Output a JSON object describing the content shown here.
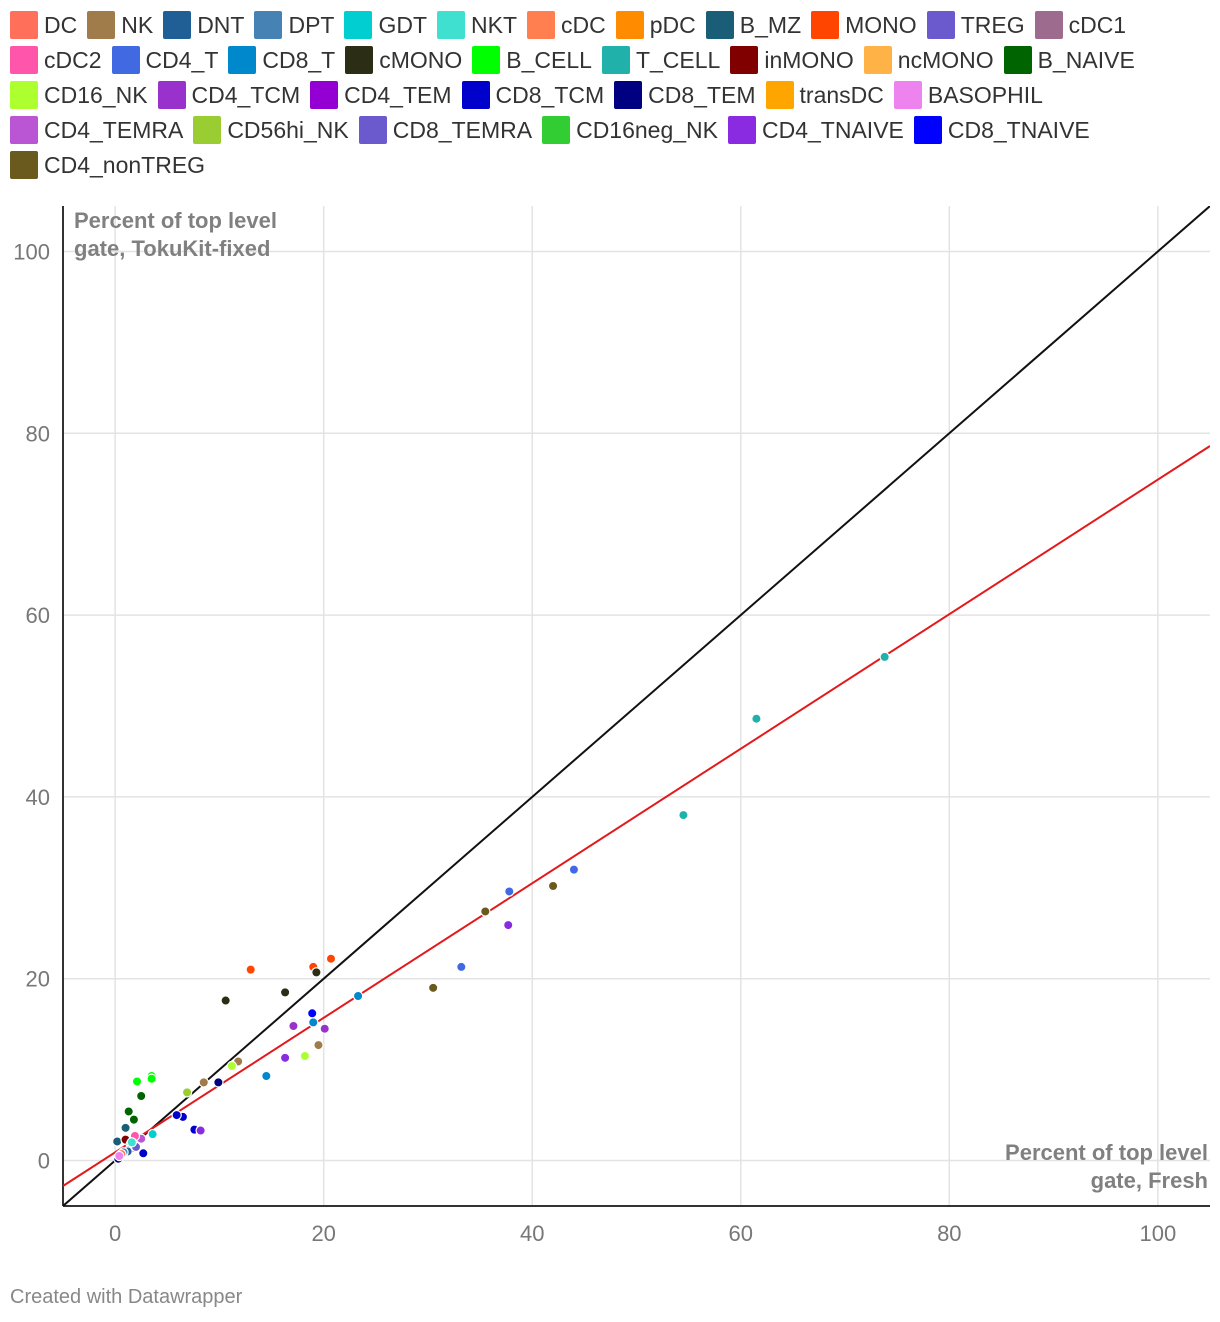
{
  "chart_data": {
    "type": "scatter",
    "legend": [
      {
        "name": "DC",
        "color": "#ff6f59"
      },
      {
        "name": "NK",
        "color": "#a07c4b"
      },
      {
        "name": "DNT",
        "color": "#1f5f96"
      },
      {
        "name": "DPT",
        "color": "#4682b4"
      },
      {
        "name": "GDT",
        "color": "#00ced1"
      },
      {
        "name": "NKT",
        "color": "#40e0d0"
      },
      {
        "name": "cDC",
        "color": "#ff7f50"
      },
      {
        "name": "pDC",
        "color": "#ff8c00"
      },
      {
        "name": "B_MZ",
        "color": "#1a5d77"
      },
      {
        "name": "MONO",
        "color": "#ff4500"
      },
      {
        "name": "TREG",
        "color": "#6a5acd"
      },
      {
        "name": "cDC1",
        "color": "#9c6b8e"
      },
      {
        "name": "cDC2",
        "color": "#ff55aa"
      },
      {
        "name": "CD4_T",
        "color": "#4169e1"
      },
      {
        "name": "CD8_T",
        "color": "#0088cc"
      },
      {
        "name": "cMONO",
        "color": "#2b2d14"
      },
      {
        "name": "B_CELL",
        "color": "#00ff00"
      },
      {
        "name": "T_CELL",
        "color": "#20b2aa"
      },
      {
        "name": "inMONO",
        "color": "#800000"
      },
      {
        "name": "ncMONO",
        "color": "#ffb347"
      },
      {
        "name": "B_NAIVE",
        "color": "#006400"
      },
      {
        "name": "CD16_NK",
        "color": "#adff2f"
      },
      {
        "name": "CD4_TCM",
        "color": "#9932cc"
      },
      {
        "name": "CD4_TEM",
        "color": "#9400d3"
      },
      {
        "name": "CD8_TCM",
        "color": "#0000cd"
      },
      {
        "name": "CD8_TEM",
        "color": "#000080"
      },
      {
        "name": "transDC",
        "color": "#ffa500"
      },
      {
        "name": "BASOPHIL",
        "color": "#ee82ee"
      },
      {
        "name": "CD4_TEMRA",
        "color": "#ba55d3"
      },
      {
        "name": "CD56hi_NK",
        "color": "#9acd32"
      },
      {
        "name": "CD8_TEMRA",
        "color": "#6a5acd"
      },
      {
        "name": "CD16neg_NK",
        "color": "#32cd32"
      },
      {
        "name": "CD4_TNAIVE",
        "color": "#8a2be2"
      },
      {
        "name": "CD8_TNAIVE",
        "color": "#0000ff"
      },
      {
        "name": "CD4_nonTREG",
        "color": "#6b5a1e"
      }
    ],
    "points": [
      {
        "series": "T_CELL",
        "x": 73.8,
        "y": 55.4
      },
      {
        "series": "T_CELL",
        "x": 61.5,
        "y": 48.6
      },
      {
        "series": "T_CELL",
        "x": 54.5,
        "y": 38.0
      },
      {
        "series": "CD4_T",
        "x": 44.0,
        "y": 32.0
      },
      {
        "series": "CD4_T",
        "x": 37.8,
        "y": 29.6
      },
      {
        "series": "CD4_T",
        "x": 33.2,
        "y": 21.3
      },
      {
        "series": "CD4_nonTREG",
        "x": 42.0,
        "y": 30.2
      },
      {
        "series": "CD4_nonTREG",
        "x": 35.5,
        "y": 27.4
      },
      {
        "series": "CD4_nonTREG",
        "x": 30.5,
        "y": 19.0
      },
      {
        "series": "CD4_TNAIVE",
        "x": 37.7,
        "y": 25.9
      },
      {
        "series": "CD8_T",
        "x": 23.3,
        "y": 18.1
      },
      {
        "series": "CD8_T",
        "x": 19.0,
        "y": 15.2
      },
      {
        "series": "CD8_T",
        "x": 14.5,
        "y": 9.3
      },
      {
        "series": "MONO",
        "x": 20.7,
        "y": 22.2
      },
      {
        "series": "MONO",
        "x": 19.0,
        "y": 21.3
      },
      {
        "series": "MONO",
        "x": 13.0,
        "y": 21.0
      },
      {
        "series": "cMONO",
        "x": 19.3,
        "y": 20.7
      },
      {
        "series": "cMONO",
        "x": 16.3,
        "y": 18.5
      },
      {
        "series": "cMONO",
        "x": 10.6,
        "y": 17.6
      },
      {
        "series": "CD8_TNAIVE",
        "x": 18.9,
        "y": 16.2
      },
      {
        "series": "CD4_TCM",
        "x": 20.1,
        "y": 14.5
      },
      {
        "series": "CD4_TCM",
        "x": 17.1,
        "y": 14.8
      },
      {
        "series": "CD4_TNAIVE",
        "x": 16.3,
        "y": 11.3
      },
      {
        "series": "NK",
        "x": 19.5,
        "y": 12.7
      },
      {
        "series": "NK",
        "x": 11.8,
        "y": 10.9
      },
      {
        "series": "NK",
        "x": 8.5,
        "y": 8.6
      },
      {
        "series": "CD16_NK",
        "x": 11.2,
        "y": 10.4
      },
      {
        "series": "CD16_NK",
        "x": 18.2,
        "y": 11.5
      },
      {
        "series": "CD56hi_NK",
        "x": 6.9,
        "y": 7.5
      },
      {
        "series": "CD8_TEM",
        "x": 9.9,
        "y": 8.6
      },
      {
        "series": "CD8_TCM",
        "x": 6.5,
        "y": 4.8
      },
      {
        "series": "CD8_TCM",
        "x": 5.9,
        "y": 5.0
      },
      {
        "series": "CD8_TCM",
        "x": 7.6,
        "y": 3.4
      },
      {
        "series": "CD4_TNAIVE",
        "x": 8.2,
        "y": 3.3
      },
      {
        "series": "B_CELL",
        "x": 3.5,
        "y": 9.3
      },
      {
        "series": "B_CELL",
        "x": 3.5,
        "y": 9.0
      },
      {
        "series": "B_CELL",
        "x": 2.1,
        "y": 8.7
      },
      {
        "series": "B_NAIVE",
        "x": 2.5,
        "y": 7.1
      },
      {
        "series": "B_NAIVE",
        "x": 1.3,
        "y": 5.4
      },
      {
        "series": "B_NAIVE",
        "x": 1.8,
        "y": 4.5
      },
      {
        "series": "B_MZ",
        "x": 1.0,
        "y": 3.6
      },
      {
        "series": "B_MZ",
        "x": 0.2,
        "y": 2.1
      },
      {
        "series": "GDT",
        "x": 3.6,
        "y": 2.9
      },
      {
        "series": "CD4_TEMRA",
        "x": 2.5,
        "y": 2.4
      },
      {
        "series": "cDC2",
        "x": 1.9,
        "y": 2.7
      },
      {
        "series": "inMONO",
        "x": 1.0,
        "y": 2.3
      },
      {
        "series": "inMONO",
        "x": 1.5,
        "y": 1.8
      },
      {
        "series": "CD8_TEM",
        "x": 1.5,
        "y": 1.3
      },
      {
        "series": "CD8_TCM",
        "x": 2.7,
        "y": 0.8
      },
      {
        "series": "CD8_TNAIVE",
        "x": 0.5,
        "y": 0.6
      },
      {
        "series": "CD8_TEM",
        "x": 0.3,
        "y": 0.2
      },
      {
        "series": "DNT",
        "x": 1.2,
        "y": 1.0
      },
      {
        "series": "DPT",
        "x": 0.8,
        "y": 0.9
      },
      {
        "series": "TREG",
        "x": 2.0,
        "y": 1.5
      },
      {
        "series": "NKT",
        "x": 1.6,
        "y": 2.0
      },
      {
        "series": "DC",
        "x": 0.6,
        "y": 0.7
      },
      {
        "series": "BASOPHIL",
        "x": 0.4,
        "y": 0.5
      }
    ],
    "lines": [
      {
        "name": "identity",
        "color": "#111111",
        "x": [
          -5,
          105
        ],
        "y": [
          -5,
          105
        ]
      },
      {
        "name": "fit",
        "color": "#e31a1c",
        "x": [
          -5,
          105
        ],
        "y": [
          -2.8,
          78.6
        ]
      }
    ],
    "xlim": [
      -5,
      105
    ],
    "ylim": [
      -5,
      105
    ],
    "xticks": [
      0,
      20,
      40,
      60,
      80,
      100
    ],
    "yticks": [
      0,
      20,
      40,
      60,
      80,
      100
    ],
    "xlabel": [
      "Percent of top level",
      "gate, Fresh"
    ],
    "ylabel": [
      "Percent of top level",
      "gate, TokuKit-fixed"
    ],
    "footer": "Created with Datawrapper"
  }
}
